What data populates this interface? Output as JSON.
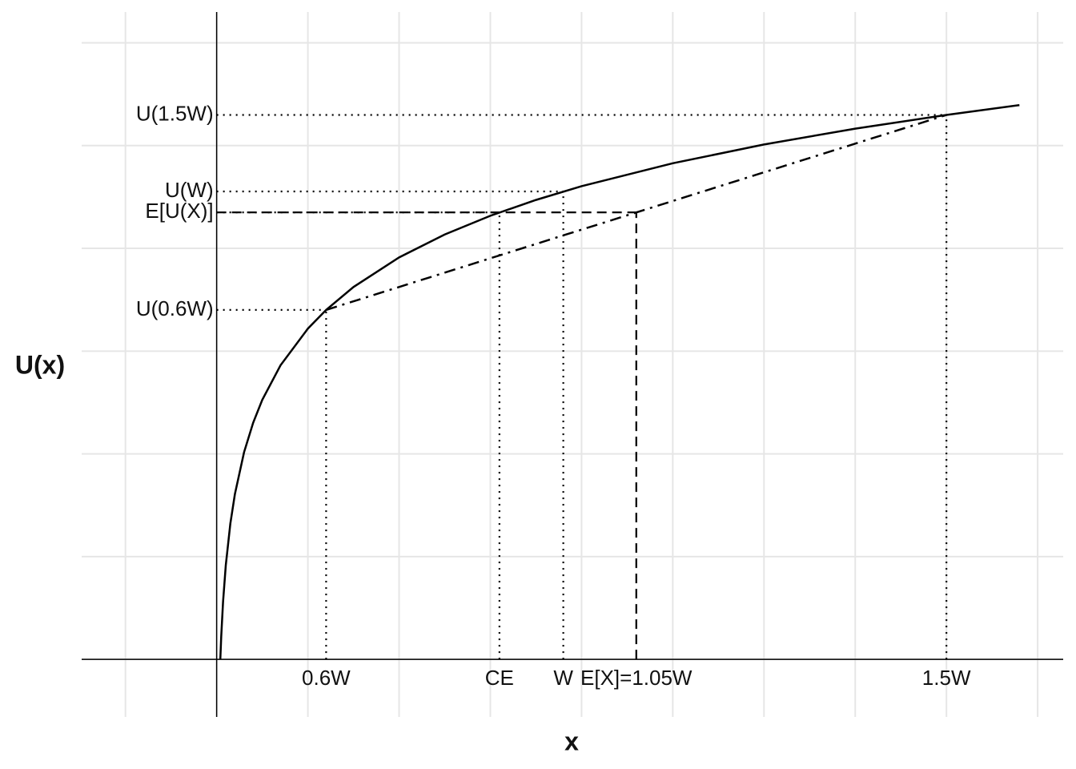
{
  "chart_data": {
    "type": "line",
    "x_label": "x",
    "y_label": "U(x)",
    "xlim": [
      -1.48,
      9.28
    ],
    "ylim": [
      -0.56,
      6.3
    ],
    "xgrid": [
      -1,
      0,
      1,
      2,
      3,
      4,
      5,
      6,
      7,
      8,
      9
    ],
    "ygrid": [
      0,
      1,
      2,
      3,
      4,
      5,
      6
    ],
    "grid": true,
    "xticks": [
      {
        "value": 1.2,
        "label": "0.6W"
      },
      {
        "value": 3.1,
        "label": "CE"
      },
      {
        "value": 3.8,
        "label": "W"
      },
      {
        "value": 4.6,
        "label": "E[X]=1.05W"
      },
      {
        "value": 8,
        "label": "1.5W"
      }
    ],
    "yticks": [
      {
        "value": 5.298,
        "label": "U(1.5W)"
      },
      {
        "value": 4.554,
        "label": "U(W)"
      },
      {
        "value": 4.35,
        "label": "E[U(X)]"
      },
      {
        "value": 3.401,
        "label": "U(0.6W)"
      }
    ],
    "series": [
      {
        "color": "#000000",
        "x": [
          0.04,
          0.05,
          0.07,
          0.1,
          0.15,
          0.2,
          0.3,
          0.4,
          0.5,
          0.7,
          1.0,
          1.2,
          1.5,
          2,
          2.5,
          3,
          3.5,
          4,
          5,
          6,
          7,
          8,
          8.8
        ],
        "values": [
          0,
          0.223,
          0.56,
          0.916,
          1.322,
          1.609,
          2.015,
          2.303,
          2.526,
          2.862,
          3.219,
          3.401,
          3.624,
          3.912,
          4.135,
          4.317,
          4.471,
          4.605,
          4.828,
          5.011,
          5.165,
          5.298,
          5.394
        ]
      },
      {
        "color": "#000000",
        "dash": "dashdot",
        "x": [
          1.2,
          8
        ],
        "values": [
          3.401,
          5.298
        ]
      }
    ],
    "guides": [
      {
        "x": 1.2,
        "y": 3.401,
        "style": "dotted"
      },
      {
        "x": 8,
        "y": 5.298,
        "style": "dotted"
      },
      {
        "x": 3.8,
        "y": 4.554,
        "style": "dotted"
      },
      {
        "x": 3.1,
        "y": 4.35,
        "style": "dotted"
      },
      {
        "x": 4.6,
        "y": 4.35,
        "style": "dashed"
      }
    ]
  }
}
